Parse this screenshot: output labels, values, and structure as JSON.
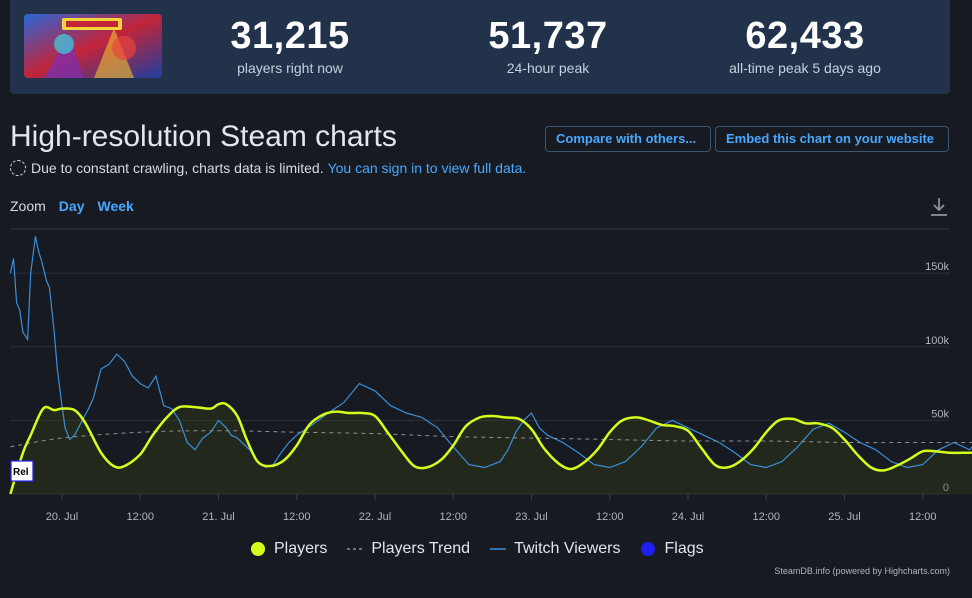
{
  "stats": [
    {
      "value": "31,215",
      "label": "players right now"
    },
    {
      "value": "51,737",
      "label": "24-hour peak"
    },
    {
      "value": "62,433",
      "label": "all-time peak 5 days ago"
    }
  ],
  "page_title": "High-resolution Steam charts",
  "buttons": {
    "compare": "Compare with others...",
    "embed": "Embed this chart on your website"
  },
  "notice": {
    "text": "Due to constant crawling, charts data is limited.",
    "link": "You can sign in to view full data."
  },
  "zoom": {
    "label": "Zoom",
    "options": [
      "Day",
      "Week"
    ]
  },
  "credit": "SteamDB.info (powered by Highcharts.com)",
  "colors": {
    "players": "#d4ff1a",
    "trend": "#8a8f96",
    "twitch": "#3a8fd9",
    "flags": "#1e1ef0",
    "background": "#171a21",
    "header": "#22324a",
    "link": "#48a8ff"
  },
  "chart_data": {
    "type": "line",
    "x_ticks": [
      "20. Jul",
      "12:00",
      "21. Jul",
      "12:00",
      "22. Jul",
      "12:00",
      "23. Jul",
      "12:00",
      "24. Jul",
      "12:00",
      "25. Jul",
      "12:00"
    ],
    "y_ticks": [
      "0",
      "50k",
      "100k",
      "150k"
    ],
    "ylim": [
      0,
      180000
    ],
    "legend_position": "bottom",
    "grid": true,
    "flag_label": "Rel",
    "series": [
      {
        "name": "Players",
        "x": [
          -0.33,
          -0.25,
          -0.2,
          -0.12,
          -0.05,
          0.0,
          0.08,
          0.15,
          0.25,
          0.33,
          0.4,
          0.5,
          0.58,
          0.67,
          0.75,
          0.85,
          0.95,
          1.0,
          1.05,
          1.12,
          1.18,
          1.25,
          1.33,
          1.42,
          1.5,
          1.58,
          1.67,
          1.75,
          1.83,
          1.92,
          2.0,
          2.08,
          2.17,
          2.25,
          2.33,
          2.42,
          2.5,
          2.58,
          2.67,
          2.75,
          2.83,
          2.92,
          3.0,
          3.08,
          3.17,
          3.25,
          3.33,
          3.42,
          3.5,
          3.58,
          3.67,
          3.75,
          3.83,
          3.92,
          4.0,
          4.08,
          4.17,
          4.25,
          4.33,
          4.42,
          4.5,
          4.58,
          4.67,
          4.75,
          4.83,
          4.92,
          5.0,
          5.08,
          5.17,
          5.25,
          5.33,
          5.42,
          5.5,
          5.58,
          5.67,
          5.75,
          5.83
        ],
        "values": [
          0,
          28000,
          40000,
          58000,
          57000,
          58000,
          57000,
          48000,
          28000,
          19000,
          19000,
          27000,
          40000,
          52000,
          59000,
          59000,
          58000,
          61000,
          61000,
          53000,
          37000,
          22000,
          19000,
          23000,
          33000,
          47000,
          54000,
          56000,
          55000,
          55000,
          53000,
          42000,
          29000,
          19000,
          18000,
          23000,
          33000,
          46000,
          52000,
          53000,
          52000,
          51000,
          44000,
          31000,
          21000,
          17000,
          21000,
          30000,
          42000,
          50000,
          52000,
          50000,
          47000,
          46000,
          43000,
          32000,
          20000,
          18000,
          22000,
          31000,
          42000,
          50000,
          51000,
          48000,
          48000,
          45000,
          37000,
          27000,
          18000,
          16000,
          19000,
          24000,
          29000,
          29000,
          28000,
          28000,
          28000
        ]
      },
      {
        "name": "Players Trend",
        "x": [
          -0.33,
          0.0,
          0.5,
          1.0,
          1.5,
          2.0,
          2.5,
          3.0,
          3.5,
          4.0,
          4.5,
          5.0,
          5.5,
          5.83
        ],
        "values": [
          32000,
          38000,
          42000,
          43000,
          42000,
          41000,
          39000,
          38000,
          37000,
          36000,
          36000,
          35000,
          35000,
          35000
        ]
      },
      {
        "name": "Twitch Viewers",
        "x": [
          -0.33,
          -0.31,
          -0.29,
          -0.27,
          -0.25,
          -0.22,
          -0.2,
          -0.17,
          -0.15,
          -0.13,
          -0.1,
          -0.08,
          -0.05,
          -0.03,
          0.0,
          0.02,
          0.05,
          0.08,
          0.1,
          0.13,
          0.17,
          0.2,
          0.25,
          0.3,
          0.35,
          0.4,
          0.45,
          0.5,
          0.55,
          0.6,
          0.65,
          0.7,
          0.75,
          0.8,
          0.85,
          0.9,
          0.95,
          1.0,
          1.05,
          1.08,
          1.12,
          1.15,
          1.2,
          1.25,
          1.3,
          1.35,
          1.4,
          1.45,
          1.5,
          1.6,
          1.7,
          1.8,
          1.9,
          2.0,
          2.1,
          2.2,
          2.3,
          2.4,
          2.5,
          2.6,
          2.7,
          2.8,
          2.85,
          2.9,
          2.95,
          3.0,
          3.05,
          3.1,
          3.2,
          3.3,
          3.4,
          3.5,
          3.6,
          3.7,
          3.8,
          3.9,
          4.0,
          4.1,
          4.2,
          4.3,
          4.4,
          4.5,
          4.6,
          4.7,
          4.8,
          4.9,
          5.0,
          5.1,
          5.2,
          5.3,
          5.4,
          5.5,
          5.6,
          5.7,
          5.8,
          5.83
        ],
        "values": [
          150000,
          160000,
          130000,
          125000,
          110000,
          105000,
          150000,
          175000,
          165000,
          158000,
          145000,
          140000,
          110000,
          85000,
          60000,
          45000,
          37000,
          40000,
          44000,
          50000,
          58000,
          65000,
          85000,
          88000,
          95000,
          90000,
          80000,
          75000,
          72000,
          80000,
          60000,
          58000,
          50000,
          35000,
          30000,
          38000,
          42000,
          50000,
          45000,
          40000,
          38000,
          35000,
          30000,
          22000,
          18000,
          20000,
          28000,
          35000,
          40000,
          47000,
          55000,
          62000,
          75000,
          70000,
          60000,
          55000,
          52000,
          45000,
          32000,
          20000,
          18000,
          22000,
          30000,
          42000,
          50000,
          55000,
          45000,
          40000,
          35000,
          28000,
          20000,
          18000,
          22000,
          32000,
          45000,
          50000,
          45000,
          40000,
          35000,
          28000,
          20000,
          18000,
          22000,
          32000,
          44000,
          48000,
          42000,
          35000,
          30000,
          22000,
          18000,
          20000,
          30000,
          35000,
          30000,
          34000
        ]
      }
    ]
  }
}
